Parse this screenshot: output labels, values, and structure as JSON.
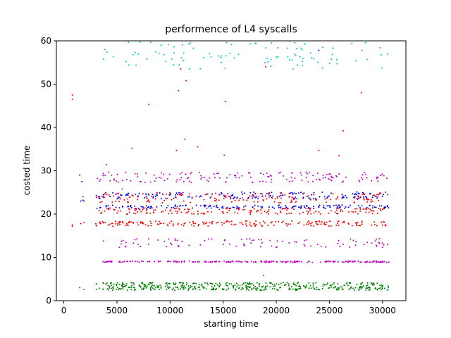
{
  "chart_data": {
    "type": "scatter",
    "title": "performence of L4 syscalls",
    "xlabel": "starting time",
    "ylabel": "costed time",
    "xlim": [
      -700,
      32200
    ],
    "ylim": [
      0,
      60
    ],
    "xticks": [
      0,
      5000,
      10000,
      15000,
      20000,
      25000,
      30000
    ],
    "yticks": [
      0,
      10,
      20,
      30,
      40,
      50,
      60
    ],
    "grid": false,
    "legend": null,
    "point_radius_note": "small dots",
    "bands": [
      {
        "color": "#00bfbf",
        "x_start": 3500,
        "x_end": 30600,
        "center": 57,
        "jitter": 3.5,
        "count": 110
      },
      {
        "color": "#bf00bf",
        "x_start": 3000,
        "x_end": 30600,
        "center": 28.5,
        "jitter": 1.2,
        "count": 150
      },
      {
        "color": "#0000ff",
        "x_start": 3000,
        "x_end": 30600,
        "center": 24.3,
        "jitter": 0.8,
        "count": 170
      },
      {
        "color": "#ff0000",
        "x_start": 3000,
        "x_end": 30600,
        "center": 23.8,
        "jitter": 1.2,
        "count": 170
      },
      {
        "color": "#0000ff",
        "x_start": 3000,
        "x_end": 30600,
        "center": 21.7,
        "jitter": 0.4,
        "count": 160
      },
      {
        "color": "#ff0000",
        "x_start": 3000,
        "x_end": 30600,
        "center": 20.7,
        "jitter": 0.7,
        "count": 170
      },
      {
        "color": "#ff0000",
        "x_start": 3000,
        "x_end": 30600,
        "center": 17.8,
        "jitter": 0.6,
        "count": 200
      },
      {
        "color": "#bf00bf",
        "x_start": 3500,
        "x_end": 30600,
        "center": 13.3,
        "jitter": 1.0,
        "count": 90
      },
      {
        "color": "#bf00bf",
        "x_start": 3500,
        "x_end": 30600,
        "center": 9.0,
        "jitter": 0.15,
        "count": 220
      },
      {
        "color": "#008000",
        "x_start": 3000,
        "x_end": 30600,
        "center": 3.7,
        "jitter": 0.5,
        "count": 220
      },
      {
        "color": "#008000",
        "x_start": 3000,
        "x_end": 30600,
        "center": 2.8,
        "jitter": 0.4,
        "count": 220
      }
    ],
    "series": [
      {
        "color": "#ff0000",
        "points": [
          [
            800,
            47.5
          ],
          [
            800,
            46.5
          ],
          [
            800,
            17.5
          ],
          [
            800,
            17.2
          ],
          [
            1600,
            17.8
          ],
          [
            1900,
            18.0
          ],
          [
            1800,
            24.0
          ],
          [
            1900,
            23.0
          ],
          [
            11000,
            53.5
          ],
          [
            11500,
            50.8
          ],
          [
            8000,
            45.3
          ],
          [
            15200,
            46.0
          ],
          [
            19000,
            54.0
          ],
          [
            28000,
            48.0
          ],
          [
            11400,
            37.3
          ],
          [
            26300,
            39.2
          ],
          [
            10800,
            48.5
          ],
          [
            25900,
            33.5
          ],
          [
            12600,
            35.5
          ]
        ]
      },
      {
        "color": "#0000ff",
        "points": [
          [
            1500,
            29.0
          ],
          [
            1700,
            27.5
          ],
          [
            1600,
            23.0
          ],
          [
            1800,
            23.2
          ],
          [
            24000,
            57.8
          ]
        ]
      },
      {
        "color": "#bf00bf",
        "points": [
          [
            6400,
            35.2
          ],
          [
            4000,
            31.4
          ],
          [
            10600,
            34.7
          ],
          [
            15100,
            33.6
          ],
          [
            24000,
            34.7
          ],
          [
            5500,
            25.8
          ]
        ]
      },
      {
        "color": "#008000",
        "points": [
          [
            1500,
            3.0
          ],
          [
            1900,
            2.6
          ],
          [
            18800,
            5.8
          ]
        ]
      }
    ]
  }
}
